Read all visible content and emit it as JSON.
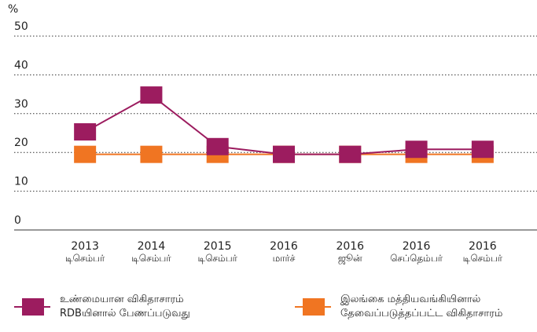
{
  "chart_data": {
    "type": "line",
    "y_label": "%",
    "categories": [
      [
        "2013",
        "டிசெம்பர்"
      ],
      [
        "2014",
        "டிசெம்பர்"
      ],
      [
        "2015",
        "டிசெம்பர்"
      ],
      [
        "2016",
        "மார்ச்"
      ],
      [
        "2016",
        "ஜூன்"
      ],
      [
        "2016",
        "செப்தெம்பர்"
      ],
      [
        "2016",
        "டிசெம்பர்"
      ]
    ],
    "series": [
      {
        "name": "இலங்கை மத்தியவங்கியினால்\nதேவைப்படுத்தப்பட்ட விகிதாசாரம்",
        "color": "#f07522",
        "values": [
          19.5,
          19.5,
          19.5,
          19.5,
          19.5,
          19.5,
          19.5
        ]
      },
      {
        "name": "உண்மையான விகிதாசாரம்\nRDBயினால் பேணப்படுவது",
        "color": "#9c1c5f",
        "values": [
          25.3,
          34.8,
          21.5,
          19.5,
          19.5,
          20.8,
          20.8
        ]
      }
    ],
    "ylim": [
      0,
      50
    ],
    "yticks": [
      0,
      10,
      20,
      30,
      40,
      50
    ],
    "grid": true
  }
}
